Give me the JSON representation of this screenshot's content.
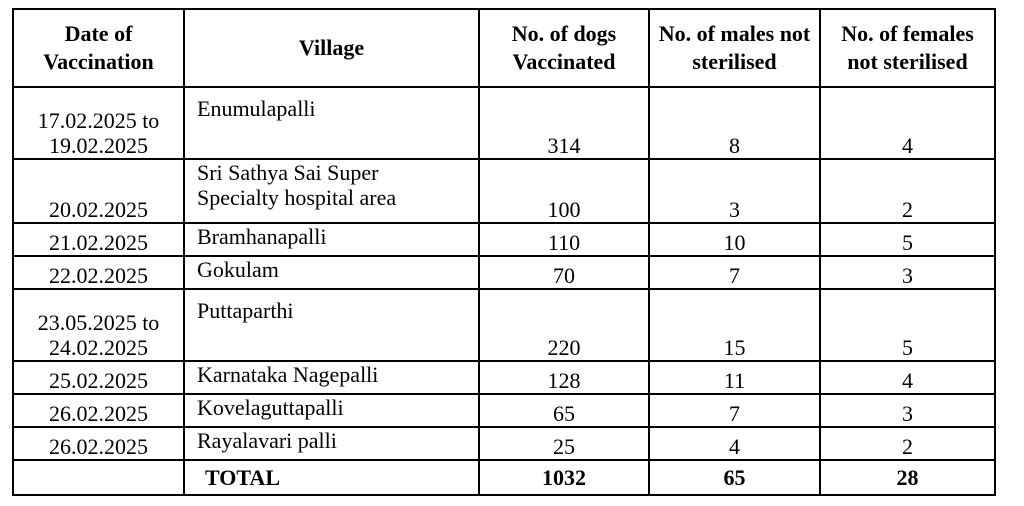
{
  "table": {
    "headers": [
      "Date of Vaccination",
      "Village",
      "No. of dogs Vaccinated",
      "No. of males not sterilised",
      "No. of females not sterilised"
    ],
    "rows": [
      {
        "date_line1": "17.02.2025 to",
        "date_line2": "19.02.2025",
        "village_line1": "Enumulapalli",
        "village_line2": "",
        "dogs": "314",
        "males": "8",
        "females": "4"
      },
      {
        "date_line1": "",
        "date_line2": "20.02.2025",
        "village_line1": "Sri Sathya Sai Super",
        "village_line2": "Specialty hospital area",
        "dogs": "100",
        "males": "3",
        "females": "2"
      },
      {
        "date": "21.02.2025",
        "village": "Bramhanapalli",
        "dogs": "110",
        "males": "10",
        "females": "5"
      },
      {
        "date": "22.02.2025",
        "village": "Gokulam",
        "dogs": "70",
        "males": "7",
        "females": "3"
      },
      {
        "date_line1": "23.05.2025 to",
        "date_line2": "24.02.2025",
        "village_line1": "Puttaparthi",
        "village_line2": "",
        "dogs": "220",
        "males": "15",
        "females": "5"
      },
      {
        "date": "25.02.2025",
        "village": "Karnataka Nagepalli",
        "dogs": "128",
        "males": "11",
        "females": "4"
      },
      {
        "date": "26.02.2025",
        "village": "Kovelaguttapalli",
        "dogs": "65",
        "males": "7",
        "females": "3"
      },
      {
        "date": "26.02.2025",
        "village": "Rayalavari palli",
        "dogs": "25",
        "males": "4",
        "females": "2"
      }
    ],
    "total": {
      "label": "TOTAL",
      "dogs": "1032",
      "males": "65",
      "females": "28"
    }
  }
}
